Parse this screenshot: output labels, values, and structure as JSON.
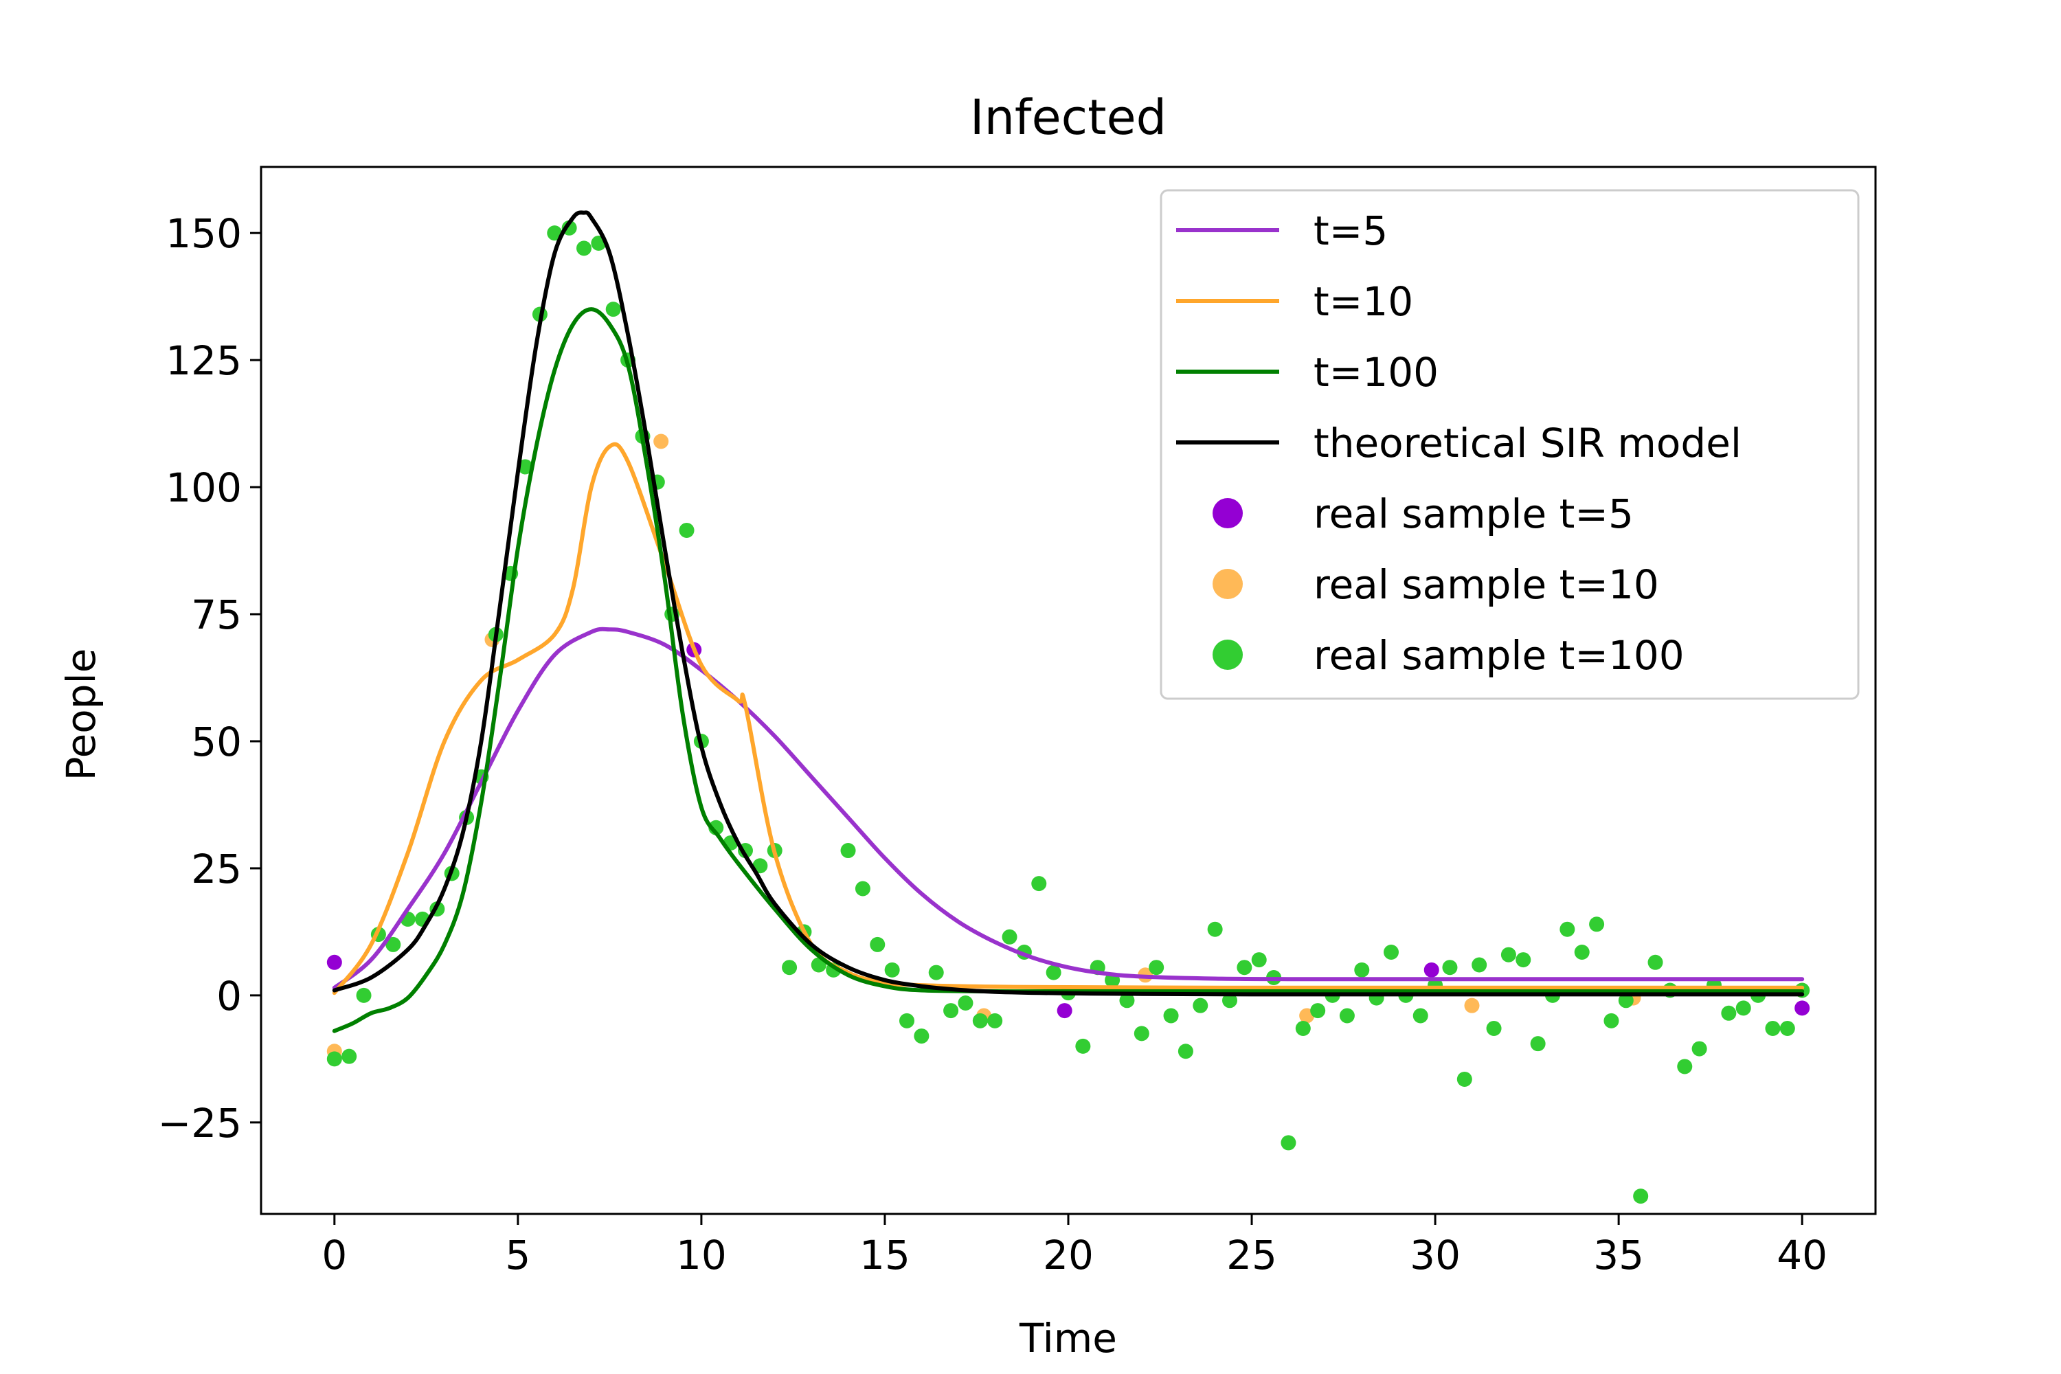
{
  "chart_data": {
    "type": "line",
    "title": "Infected",
    "xlabel": "Time",
    "ylabel": "People",
    "xlim": [
      -2,
      42
    ],
    "ylim": [
      -43,
      163
    ],
    "xticks": [
      0,
      5,
      10,
      15,
      20,
      25,
      30,
      35,
      40
    ],
    "yticks": [
      -25,
      0,
      25,
      50,
      75,
      100,
      125,
      150
    ],
    "xtick_labels": [
      "0",
      "5",
      "10",
      "15",
      "20",
      "25",
      "30",
      "35",
      "40"
    ],
    "ytick_labels": [
      "−25",
      "0",
      "25",
      "50",
      "75",
      "100",
      "125",
      "150"
    ],
    "grid": false,
    "legend_position": "top-right",
    "legend": [
      {
        "label": "t=5",
        "kind": "line",
        "color": "#9932cc"
      },
      {
        "label": "t=10",
        "kind": "line",
        "color": "#ffa62b"
      },
      {
        "label": "t=100",
        "kind": "line",
        "color": "#008000"
      },
      {
        "label": "theoretical SIR model",
        "kind": "line",
        "color": "#000000"
      },
      {
        "label": "real sample t=5",
        "kind": "marker",
        "color": "#9400d3"
      },
      {
        "label": "real sample t=10",
        "kind": "marker",
        "color": "#ffb957"
      },
      {
        "label": "real sample t=100",
        "kind": "marker",
        "color": "#32cd32"
      }
    ],
    "series": [
      {
        "name": "t=5",
        "kind": "line",
        "color": "#9932cc",
        "x": [
          0,
          1,
          2,
          3,
          4,
          5,
          6,
          7,
          7.5,
          8,
          9,
          10,
          11,
          12,
          13,
          14,
          15,
          16,
          17,
          18,
          19,
          20,
          21,
          22,
          24,
          26,
          28,
          30,
          35,
          40
        ],
        "y": [
          1.5,
          7,
          17,
          28,
          42,
          56,
          67,
          71.5,
          72,
          71.5,
          69,
          64,
          58,
          51,
          43,
          35,
          27,
          20,
          14.5,
          10.5,
          7.5,
          5.5,
          4.3,
          3.7,
          3.3,
          3.2,
          3.2,
          3.2,
          3.2,
          3.2
        ]
      },
      {
        "name": "t=10",
        "kind": "line",
        "color": "#ffa62b",
        "x": [
          0,
          1,
          2,
          3,
          4,
          5,
          6,
          6.5,
          7,
          7.5,
          8,
          9,
          10,
          11,
          11.2,
          12,
          13,
          14,
          15,
          16,
          18,
          20,
          25,
          30,
          35,
          40
        ],
        "y": [
          0.5,
          10,
          28,
          50,
          62,
          66,
          71,
          80,
          100,
          108,
          105,
          85,
          65,
          58,
          57,
          28,
          10,
          4.5,
          2.5,
          2,
          1.7,
          1.6,
          1.5,
          1.5,
          1.5,
          1.5
        ]
      },
      {
        "name": "t=100",
        "kind": "line",
        "color": "#008000",
        "x": [
          0,
          0.5,
          1,
          1.5,
          2,
          2.5,
          3,
          3.5,
          4,
          4.5,
          5,
          5.5,
          6,
          6.5,
          7,
          7.5,
          8,
          8.5,
          9,
          9.5,
          10,
          10.5,
          11,
          12,
          13,
          14,
          15,
          16,
          18,
          20,
          25,
          30,
          35,
          40
        ],
        "y": [
          -7,
          -5.5,
          -3.5,
          -2.5,
          -0.5,
          4,
          10,
          20,
          38,
          62,
          88,
          108,
          123,
          132,
          135,
          132,
          124,
          105,
          82,
          55,
          37,
          31,
          26,
          17,
          9,
          4,
          1.8,
          1,
          0.8,
          0.8,
          0.8,
          0.8,
          0.8,
          0.8
        ]
      },
      {
        "name": "theoretical SIR model",
        "kind": "line",
        "color": "#000000",
        "x": [
          0,
          1,
          2,
          2.5,
          3,
          3.5,
          4,
          4.5,
          5,
          5.5,
          6,
          6.5,
          6.8,
          7,
          7.5,
          8,
          8.5,
          9,
          9.5,
          10,
          10.5,
          11,
          11.5,
          12,
          13,
          14,
          15,
          16,
          17,
          18,
          20,
          22,
          25,
          30,
          35,
          40
        ],
        "y": [
          1,
          3.5,
          9,
          14,
          21,
          32,
          50,
          76,
          103,
          128,
          146,
          153,
          154,
          153,
          146,
          130,
          110,
          88,
          67,
          49,
          38,
          30,
          24,
          18,
          10,
          5.5,
          3,
          1.8,
          1.1,
          0.7,
          0.4,
          0.3,
          0.2,
          0.2,
          0.2,
          0.2
        ]
      },
      {
        "name": "real sample t=5",
        "kind": "scatter",
        "color": "#9400d3",
        "x": [
          0,
          9.8,
          19.9,
          29.9,
          40
        ],
        "y": [
          6.5,
          68,
          -3,
          5,
          -2.5
        ]
      },
      {
        "name": "real sample t=10",
        "kind": "scatter",
        "color": "#ffb957",
        "x": [
          0,
          4.3,
          8.9,
          13.2,
          17.7,
          22.1,
          26.5,
          31,
          35.4,
          40
        ],
        "y": [
          -11,
          70,
          109,
          6,
          -4,
          4,
          -4,
          -2,
          -0.5,
          1
        ]
      },
      {
        "name": "real sample t=100",
        "kind": "scatter",
        "color": "#32cd32",
        "x": [
          0,
          0.4,
          0.8,
          1.2,
          1.6,
          2,
          2.4,
          2.8,
          3.2,
          3.6,
          4,
          4.4,
          4.8,
          5.2,
          5.6,
          6,
          6.4,
          6.8,
          7.2,
          7.6,
          8,
          8.4,
          8.8,
          9.2,
          9.6,
          10,
          10.4,
          10.8,
          11.2,
          11.6,
          12,
          12.4,
          12.8,
          13.2,
          13.6,
          14,
          14.4,
          14.8,
          15.2,
          15.6,
          16,
          16.4,
          16.8,
          17.2,
          17.6,
          18,
          18.4,
          18.8,
          19.2,
          19.6,
          20,
          20.4,
          20.8,
          21.2,
          21.6,
          22,
          22.4,
          22.8,
          23.2,
          23.6,
          24,
          24.4,
          24.8,
          25.2,
          25.6,
          26,
          26.4,
          26.8,
          27.2,
          27.6,
          28,
          28.4,
          28.8,
          29.2,
          29.6,
          30,
          30.4,
          30.8,
          31.2,
          31.6,
          32,
          32.4,
          32.8,
          33.2,
          33.6,
          34,
          34.4,
          34.8,
          35.2,
          35.6,
          36,
          36.4,
          36.8,
          37.2,
          37.6,
          38,
          38.4,
          38.8,
          39.2,
          39.6,
          40
        ],
        "y": [
          -12.5,
          -12,
          0,
          12,
          10,
          15,
          15,
          17,
          24,
          35,
          43,
          71,
          83,
          104,
          134,
          150,
          151,
          147,
          148,
          135,
          125,
          110,
          101,
          75,
          91.5,
          50,
          33,
          30,
          28.5,
          25.5,
          28.5,
          5.5,
          12.5,
          6,
          5,
          28.5,
          21,
          10,
          5,
          -5,
          -8,
          4.5,
          -3,
          -1.5,
          -5,
          -5,
          11.5,
          8.5,
          22,
          4.5,
          0.5,
          -10,
          5.5,
          3,
          -1,
          -7.5,
          5.5,
          -4,
          -11,
          -2,
          13,
          -1,
          5.5,
          7,
          3.5,
          -29,
          -6.5,
          -3,
          0,
          -4,
          5,
          -0.5,
          8.5,
          0,
          -4,
          2,
          5.5,
          -16.5,
          6,
          -6.5,
          8,
          7,
          -9.5,
          0,
          13,
          8.5,
          14,
          -5,
          -1,
          -39.5,
          6.5,
          1,
          -14,
          -10.5,
          2,
          -3.5,
          -2.5,
          0,
          -6.5,
          -6.5,
          1
        ]
      }
    ]
  }
}
